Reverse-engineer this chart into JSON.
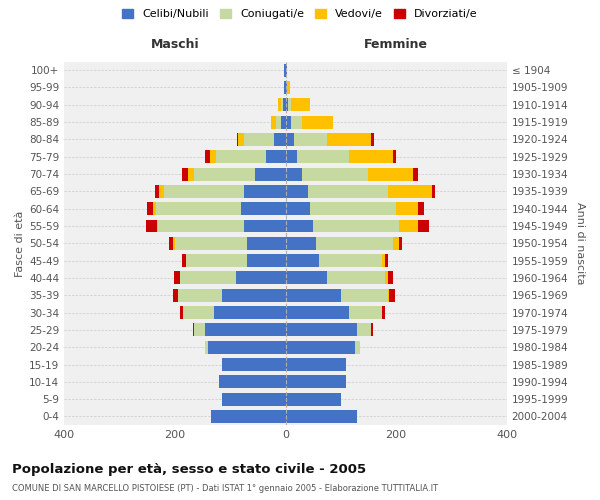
{
  "age_groups": [
    "0-4",
    "5-9",
    "10-14",
    "15-19",
    "20-24",
    "25-29",
    "30-34",
    "35-39",
    "40-44",
    "45-49",
    "50-54",
    "55-59",
    "60-64",
    "65-69",
    "70-74",
    "75-79",
    "80-84",
    "85-89",
    "90-94",
    "95-99",
    "100+"
  ],
  "birth_years": [
    "2000-2004",
    "1995-1999",
    "1990-1994",
    "1985-1989",
    "1980-1984",
    "1975-1979",
    "1970-1974",
    "1965-1969",
    "1960-1964",
    "1955-1959",
    "1950-1954",
    "1945-1949",
    "1940-1944",
    "1935-1939",
    "1930-1934",
    "1925-1929",
    "1920-1924",
    "1915-1919",
    "1910-1914",
    "1905-1909",
    "≤ 1904"
  ],
  "males": {
    "celibi": [
      135,
      115,
      120,
      115,
      140,
      145,
      130,
      115,
      90,
      70,
      70,
      75,
      80,
      75,
      55,
      35,
      20,
      8,
      5,
      3,
      2
    ],
    "coniugati": [
      0,
      0,
      0,
      0,
      5,
      20,
      55,
      80,
      100,
      110,
      130,
      155,
      155,
      145,
      110,
      90,
      55,
      10,
      3,
      0,
      0
    ],
    "vedovi": [
      0,
      0,
      0,
      0,
      0,
      0,
      0,
      0,
      0,
      0,
      3,
      3,
      5,
      8,
      12,
      12,
      10,
      8,
      5,
      0,
      0
    ],
    "divorziati": [
      0,
      0,
      0,
      0,
      0,
      3,
      5,
      8,
      12,
      8,
      8,
      20,
      10,
      8,
      10,
      8,
      3,
      0,
      0,
      0,
      0
    ]
  },
  "females": {
    "nubili": [
      130,
      100,
      110,
      110,
      125,
      130,
      115,
      100,
      75,
      60,
      55,
      50,
      45,
      40,
      30,
      20,
      15,
      10,
      5,
      3,
      2
    ],
    "coniugate": [
      0,
      0,
      0,
      0,
      10,
      25,
      60,
      85,
      105,
      115,
      140,
      155,
      155,
      145,
      120,
      95,
      60,
      20,
      5,
      0,
      0
    ],
    "vedove": [
      0,
      0,
      0,
      0,
      0,
      0,
      0,
      3,
      5,
      5,
      10,
      35,
      40,
      80,
      80,
      80,
      80,
      55,
      35,
      5,
      0
    ],
    "divorziate": [
      0,
      0,
      0,
      0,
      0,
      3,
      5,
      10,
      10,
      5,
      5,
      20,
      10,
      5,
      10,
      5,
      5,
      0,
      0,
      0,
      0
    ]
  },
  "colors": {
    "celibi_nubili": "#4472c4",
    "coniugati": "#c5d9a0",
    "vedovi": "#ffc000",
    "divorziati": "#cc0000"
  },
  "title": "Popolazione per età, sesso e stato civile - 2005",
  "subtitle": "COMUNE DI SAN MARCELLO PISTOIESE (PT) - Dati ISTAT 1° gennaio 2005 - Elaborazione TUTTITALIA.IT",
  "ylabel_left": "Fasce di età",
  "ylabel_right": "Anni di nascita",
  "xlabel_maschi": "Maschi",
  "xlabel_femmine": "Femmine",
  "xlim": 400,
  "background_color": "#f0f0f0",
  "legend_labels": [
    "Celibi/Nubili",
    "Coniugati/e",
    "Vedovi/e",
    "Divorziati/e"
  ]
}
